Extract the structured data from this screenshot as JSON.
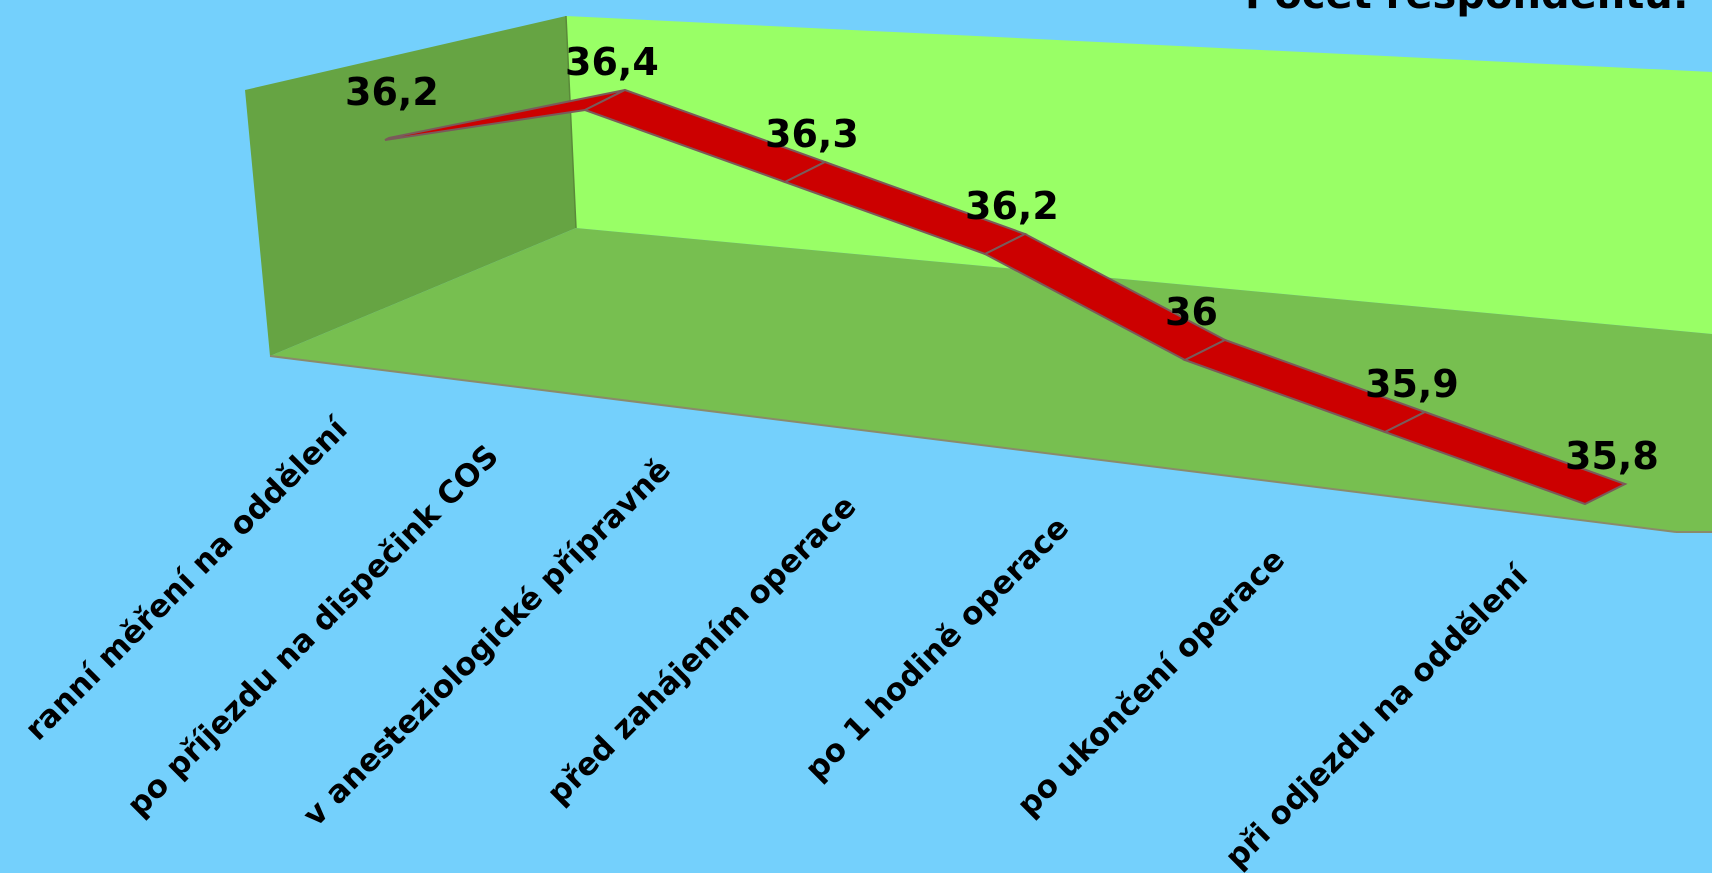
{
  "chart_data": {
    "type": "line",
    "title": "Počet respondentů:",
    "categories": [
      "ranní měření na oddělení",
      "po příjezdu na dispečink COS",
      "v anesteziologické přípravně",
      "před zahájením operace",
      "po 1 hodině operace",
      "po ukončení operace",
      "při odjezdu na oddělení"
    ],
    "series": [
      {
        "values": [
          36.2,
          36.4,
          36.3,
          36.2,
          36.0,
          35.9,
          35.8
        ],
        "data_labels": [
          "36,2",
          "36,4",
          "36,3",
          "36,2",
          "36",
          "35,9",
          "35,8"
        ]
      }
    ],
    "ylim": [
      35.6,
      36.6
    ],
    "colors": {
      "background": "#74d0fc",
      "back_wall": "#99ff66",
      "side_wall": "#66a443",
      "floor": "#77bf50",
      "ribbon": "#cc0000",
      "ribbon_edge": "#7a5a5a"
    },
    "render_3d": true,
    "grid": false,
    "legend": "none"
  }
}
